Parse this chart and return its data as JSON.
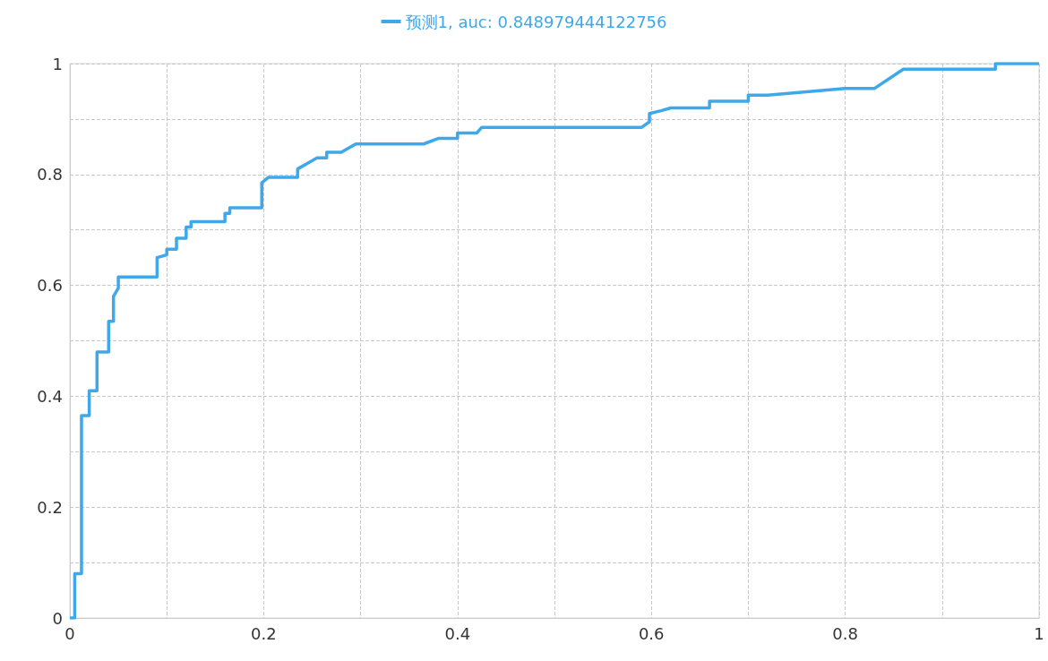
{
  "chart_data": {
    "type": "line",
    "series": [
      {
        "name": "预测1, auc: 0.848979444122756",
        "color": "#3ea8ea",
        "x": [
          0,
          0.005,
          0.005,
          0.012,
          0.012,
          0.02,
          0.02,
          0.028,
          0.028,
          0.04,
          0.04,
          0.045,
          0.045,
          0.05,
          0.05,
          0.09,
          0.09,
          0.1,
          0.1,
          0.11,
          0.11,
          0.12,
          0.12,
          0.125,
          0.125,
          0.16,
          0.16,
          0.165,
          0.165,
          0.198,
          0.198,
          0.205,
          0.235,
          0.235,
          0.245,
          0.255,
          0.265,
          0.265,
          0.28,
          0.295,
          0.365,
          0.38,
          0.4,
          0.4,
          0.42,
          0.425,
          0.59,
          0.598,
          0.598,
          0.61,
          0.62,
          0.66,
          0.66,
          0.7,
          0.7,
          0.72,
          0.8,
          0.83,
          0.86,
          0.955,
          0.955,
          1
        ],
        "values": [
          0,
          0,
          0.08,
          0.08,
          0.365,
          0.365,
          0.41,
          0.41,
          0.48,
          0.48,
          0.535,
          0.535,
          0.58,
          0.595,
          0.615,
          0.615,
          0.65,
          0.655,
          0.665,
          0.665,
          0.685,
          0.685,
          0.705,
          0.705,
          0.715,
          0.715,
          0.73,
          0.73,
          0.74,
          0.74,
          0.785,
          0.795,
          0.795,
          0.81,
          0.82,
          0.83,
          0.83,
          0.84,
          0.84,
          0.855,
          0.855,
          0.865,
          0.865,
          0.875,
          0.875,
          0.885,
          0.885,
          0.895,
          0.91,
          0.915,
          0.92,
          0.92,
          0.932,
          0.932,
          0.943,
          0.943,
          0.955,
          0.955,
          0.99,
          0.99,
          1,
          1
        ]
      }
    ],
    "xlim": [
      0,
      1
    ],
    "xticks": [
      0,
      {
        "value": 0.1,
        "label": null
      },
      0.2,
      {
        "value": 0.3,
        "label": null
      },
      0.4,
      {
        "value": 0.5,
        "label": null
      },
      0.6,
      {
        "value": 0.7,
        "label": null
      },
      0.8,
      {
        "value": 0.9,
        "label": null
      },
      1
    ],
    "ylim": [
      0,
      1
    ],
    "yticks": [
      0,
      {
        "value": 0.1,
        "label": null
      },
      0.2,
      {
        "value": 0.3,
        "label": null
      },
      0.4,
      {
        "value": 0.5,
        "label": null
      },
      0.6,
      {
        "value": 0.7,
        "label": null
      },
      0.8,
      {
        "value": 0.9,
        "label": null
      },
      1
    ],
    "grid": true,
    "legend": "top",
    "marker": "none",
    "line_style": "solid"
  }
}
